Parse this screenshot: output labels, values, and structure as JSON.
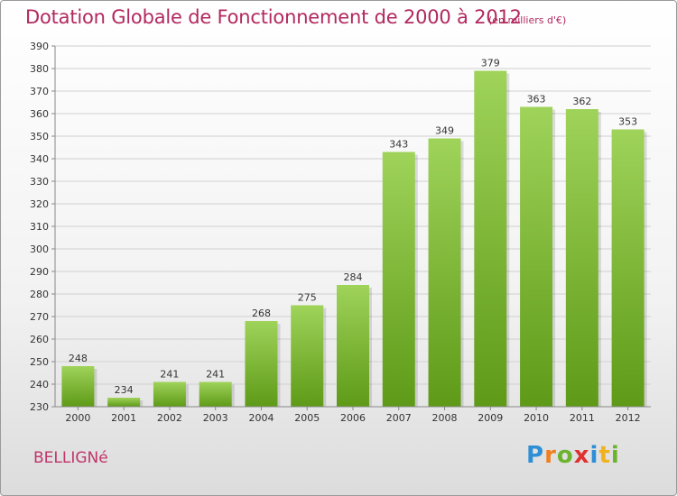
{
  "header": {
    "title": "Dotation Globale de Fonctionnement de 2000 à 2012",
    "subtitle": "(en milliers d'€)"
  },
  "footer": {
    "commune": "BELLIGNé",
    "brand": [
      "P",
      "r",
      "o",
      "x",
      "i",
      "t",
      "i"
    ]
  },
  "colors": {
    "title": "#b2285f",
    "bar_light": "#9fd35a",
    "bar_dark": "#5e9a17",
    "grid": "#d0d0d0"
  },
  "chart_data": {
    "type": "bar",
    "title": "Dotation Globale de Fonctionnement de 2000 à 2012",
    "subtitle": "(en milliers d'€)",
    "xlabel": "",
    "ylabel": "",
    "categories": [
      "2000",
      "2001",
      "2002",
      "2003",
      "2004",
      "2005",
      "2006",
      "2007",
      "2008",
      "2009",
      "2010",
      "2011",
      "2012"
    ],
    "values": [
      248,
      234,
      241,
      241,
      268,
      275,
      284,
      343,
      349,
      379,
      363,
      362,
      353
    ],
    "ylim": [
      230,
      390
    ],
    "yticks": [
      230,
      240,
      250,
      260,
      270,
      280,
      290,
      300,
      310,
      320,
      330,
      340,
      350,
      360,
      370,
      380,
      390
    ],
    "grid": true,
    "data_labels": true,
    "legend": "none"
  }
}
